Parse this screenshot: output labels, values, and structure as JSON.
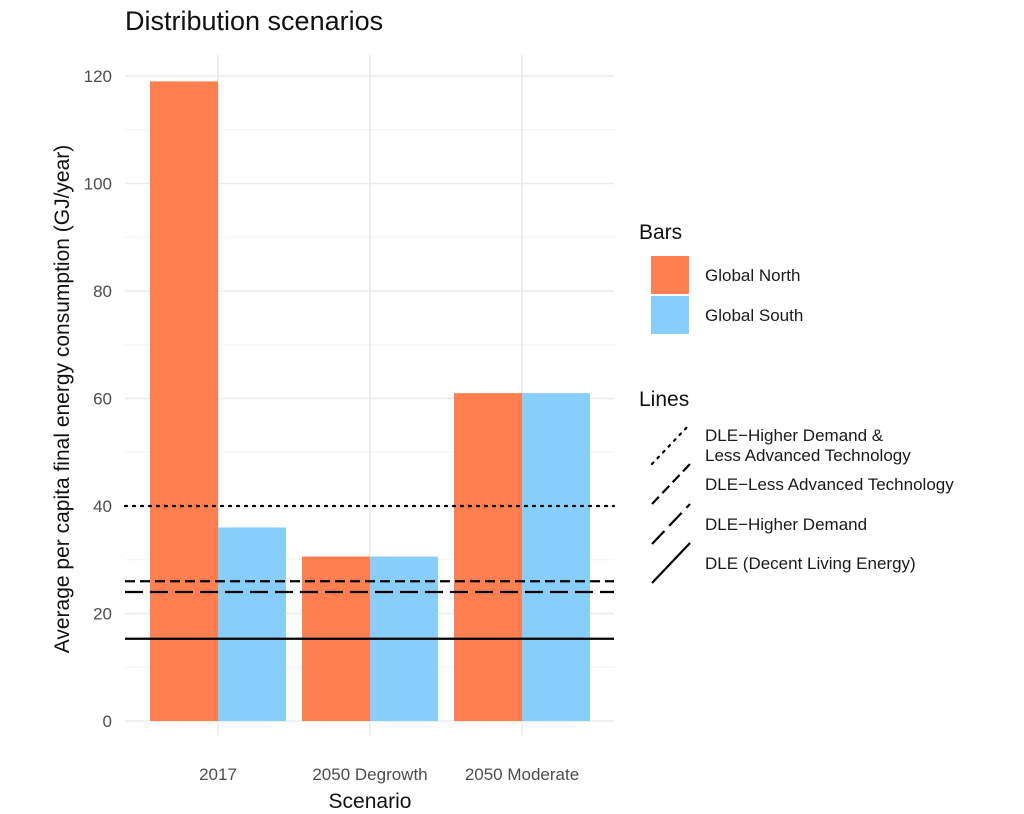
{
  "chart_data": {
    "type": "bar",
    "title": "Distribution scenarios",
    "xlabel": "Scenario",
    "ylabel": "Average per capita final energy consumption (GJ/year)",
    "ylim": [
      0,
      125
    ],
    "yticks": [
      0,
      20,
      40,
      60,
      80,
      100,
      120
    ],
    "categories": [
      "2017",
      "2050 Degrowth",
      "2050 Moderate"
    ],
    "series": [
      {
        "name": "Global North",
        "color": "#FF7F50",
        "values": [
          119,
          30.6,
          61
        ]
      },
      {
        "name": "Global South",
        "color": "#87CEFA",
        "values": [
          36,
          30.6,
          61
        ]
      }
    ],
    "legend_bars_title": "Bars",
    "legend_lines_title": "Lines",
    "reference_lines": [
      {
        "name": "DLE−Higher Demand &\nLess Advanced Technology",
        "value": 40,
        "style": "dotted"
      },
      {
        "name": "DLE−Less Advanced Technology",
        "value": 26,
        "style": "dashed"
      },
      {
        "name": "DLE−Higher Demand",
        "value": 24,
        "style": "longdash"
      },
      {
        "name": "DLE (Decent Living Energy)",
        "value": 15.3,
        "style": "solid"
      }
    ],
    "grid": true,
    "legend_position": "right"
  }
}
